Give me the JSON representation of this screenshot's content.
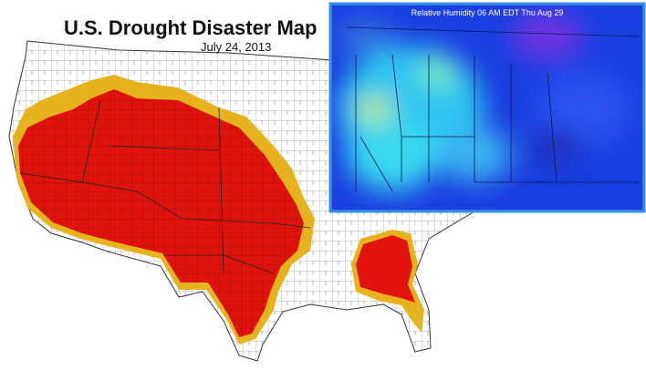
{
  "header": {
    "title": "U.S. Drought Disaster Map",
    "date": "July 24, 2013"
  },
  "inset": {
    "title": "Relative Humidity 06 AM EDT Thu Aug 29"
  }
}
